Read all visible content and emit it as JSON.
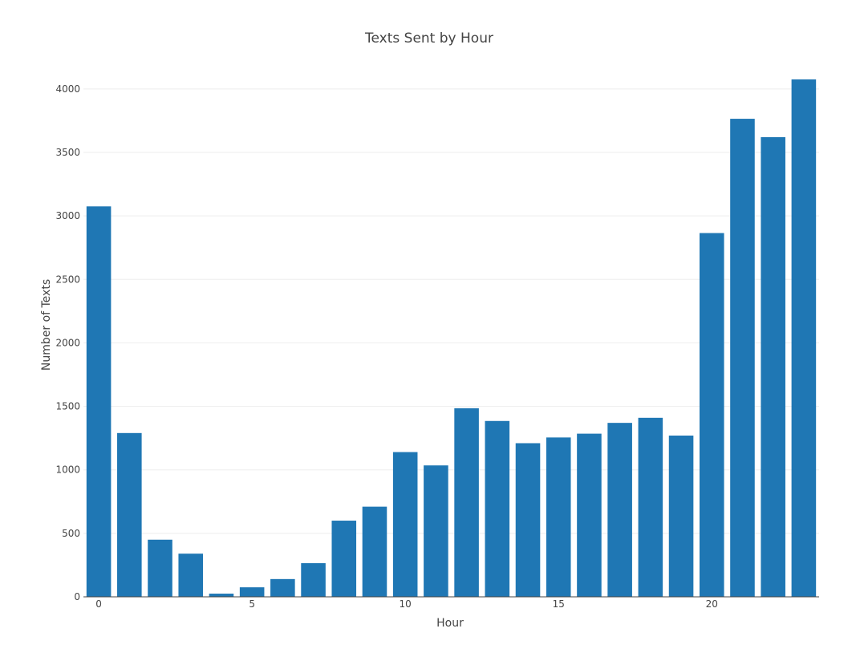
{
  "chart_data": {
    "type": "bar",
    "title": "Texts Sent by Hour",
    "xlabel": "Hour",
    "ylabel": "Number of Texts",
    "x": [
      0,
      1,
      2,
      3,
      4,
      5,
      6,
      7,
      8,
      9,
      10,
      11,
      12,
      13,
      14,
      15,
      16,
      17,
      18,
      19,
      20,
      21,
      22,
      23
    ],
    "values": [
      3075,
      1290,
      450,
      340,
      25,
      75,
      140,
      265,
      600,
      710,
      1140,
      1035,
      1485,
      1385,
      1210,
      1255,
      1285,
      1370,
      1410,
      1270,
      2865,
      3765,
      3620,
      4075
    ],
    "ylim": [
      0,
      4075
    ],
    "xlim": [
      -0.5,
      23.5
    ],
    "yticks": [
      0,
      500,
      1000,
      1500,
      2000,
      2500,
      3000,
      3500,
      4000
    ],
    "xticks": [
      0,
      5,
      10,
      15,
      20
    ],
    "grid": true,
    "color": "#1f77b4"
  }
}
